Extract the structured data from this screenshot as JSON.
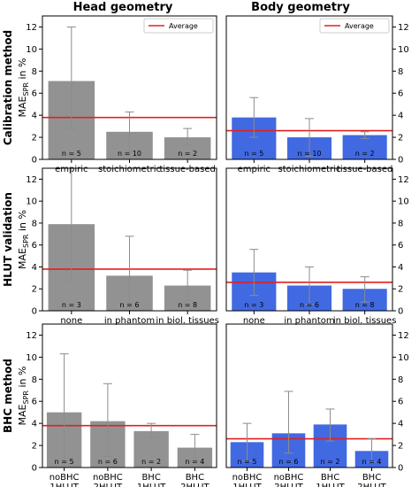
{
  "column_titles": [
    "Head geometry",
    "Body geometry"
  ],
  "row_titles": [
    "Calibration method",
    "HLUT validation",
    "BHC method"
  ],
  "ylabel_main": "MAE",
  "ylabel_sub": "SPR",
  "ylabel_rest": " in %",
  "legend_label": "Average",
  "colors": {
    "head_bar": "#929292",
    "body_bar": "#4169e1",
    "average_line": "#e02020",
    "error_bar": "#8c8c8c"
  },
  "chart_data": [
    {
      "type": "bar",
      "row": 0,
      "col": 0,
      "categories": [
        "empiric",
        "stoichiometric",
        "tissue-based"
      ],
      "values": [
        7.1,
        2.5,
        2.0
      ],
      "err_low": [
        2.8,
        0.7,
        1.3
      ],
      "err_high": [
        12.0,
        4.3,
        2.8
      ],
      "n_labels": [
        "n = 5",
        "n = 10",
        "n = 2"
      ],
      "average": 3.8,
      "ylim": [
        0,
        13
      ],
      "yticks": [
        0,
        2,
        4,
        6,
        8,
        10,
        12
      ],
      "legend": "top-right",
      "y_axis_side": "left"
    },
    {
      "type": "bar",
      "row": 0,
      "col": 1,
      "categories": [
        "empiric",
        "stoichiometric",
        "tissue-based"
      ],
      "values": [
        3.8,
        2.0,
        2.2
      ],
      "err_low": [
        2.0,
        0.3,
        1.9
      ],
      "err_high": [
        5.6,
        3.7,
        2.5
      ],
      "n_labels": [
        "n = 5",
        "n = 10",
        "n = 2"
      ],
      "average": 2.6,
      "ylim": [
        0,
        13
      ],
      "yticks": [
        0,
        2,
        4,
        6,
        8,
        10,
        12
      ],
      "legend": "top-right",
      "y_axis_side": "right"
    },
    {
      "type": "bar",
      "row": 1,
      "col": 0,
      "categories": [
        "none",
        "in phantom",
        "in biol. tissues"
      ],
      "values": [
        7.9,
        3.2,
        2.3
      ],
      "err_low": [
        2.8,
        0.0,
        0.9
      ],
      "err_high": [
        13.0,
        6.8,
        3.7
      ],
      "n_labels": [
        "n = 3",
        "n = 6",
        "n = 8"
      ],
      "average": 3.8,
      "ylim": [
        0,
        13
      ],
      "yticks": [
        0,
        2,
        4,
        6,
        8,
        10,
        12
      ],
      "y_axis_side": "left"
    },
    {
      "type": "bar",
      "row": 1,
      "col": 1,
      "categories": [
        "none",
        "in phantom",
        "in biol. tissues"
      ],
      "values": [
        3.5,
        2.3,
        2.0
      ],
      "err_low": [
        1.4,
        0.6,
        0.8
      ],
      "err_high": [
        5.6,
        4.0,
        3.1
      ],
      "n_labels": [
        "n = 3",
        "n = 6",
        "n = 8"
      ],
      "average": 2.6,
      "ylim": [
        0,
        13
      ],
      "yticks": [
        0,
        2,
        4,
        6,
        8,
        10,
        12
      ],
      "y_axis_side": "right"
    },
    {
      "type": "bar",
      "row": 2,
      "col": 0,
      "categories": [
        "noBHC\n1HLUT",
        "noBHC\n2HLUT",
        "BHC\n1HLUT",
        "BHC\n2HLUT"
      ],
      "values": [
        5.0,
        4.2,
        3.3,
        1.8
      ],
      "err_low": [
        0.0,
        1.0,
        2.7,
        0.6
      ],
      "err_high": [
        10.3,
        7.6,
        4.0,
        3.0
      ],
      "n_labels": [
        "n = 5",
        "n = 6",
        "n = 2",
        "n = 4"
      ],
      "average": 3.8,
      "ylim": [
        0,
        13
      ],
      "yticks": [
        0,
        2,
        4,
        6,
        8,
        10,
        12
      ],
      "y_axis_side": "left"
    },
    {
      "type": "bar",
      "row": 2,
      "col": 1,
      "categories": [
        "noBHC\n1HLUT",
        "noBHC\n2HLUT",
        "BHC\n1HLUT",
        "BHC\n2HLUT"
      ],
      "values": [
        2.3,
        3.1,
        3.9,
        1.5
      ],
      "err_low": [
        0.6,
        1.3,
        2.4,
        0.5
      ],
      "err_high": [
        4.0,
        6.9,
        5.3,
        2.6
      ],
      "n_labels": [
        "n = 5",
        "n = 6",
        "n = 2",
        "n = 4"
      ],
      "average": 2.6,
      "ylim": [
        0,
        13
      ],
      "yticks": [
        0,
        2,
        4,
        6,
        8,
        10,
        12
      ],
      "y_axis_side": "right"
    }
  ]
}
